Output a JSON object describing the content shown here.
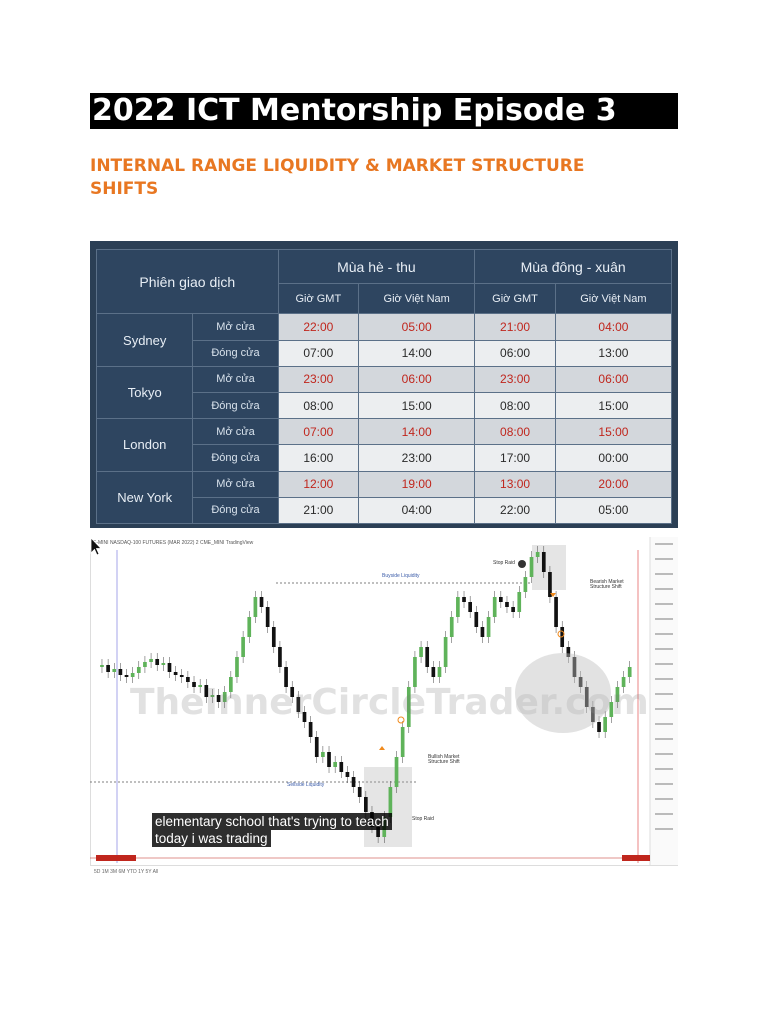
{
  "document": {
    "title": "2022 ICT Mentorship Episode 3",
    "subtitle": "INTERNAL RANGE LIQUIDITY & MARKET STRUCTURE SHIFTS"
  },
  "session_table": {
    "header_session": "Phiên giao dịch",
    "season_summer": "Mùa hè - thu",
    "season_winter": "Mùa đông - xuân",
    "col_gmt": "Giờ GMT",
    "col_vn": "Giờ Việt Nam",
    "label_open": "Mở cửa",
    "label_close": "Đóng cửa",
    "rows": [
      {
        "city": "Sydney",
        "open": [
          "22:00",
          "05:00",
          "21:00",
          "04:00"
        ],
        "close": [
          "07:00",
          "14:00",
          "06:00",
          "13:00"
        ]
      },
      {
        "city": "Tokyo",
        "open": [
          "23:00",
          "06:00",
          "23:00",
          "06:00"
        ],
        "close": [
          "08:00",
          "15:00",
          "08:00",
          "15:00"
        ]
      },
      {
        "city": "London",
        "open": [
          "07:00",
          "14:00",
          "08:00",
          "15:00"
        ],
        "close": [
          "16:00",
          "23:00",
          "17:00",
          "00:00"
        ]
      },
      {
        "city": "New York",
        "open": [
          "12:00",
          "19:00",
          "13:00",
          "20:00"
        ],
        "close": [
          "21:00",
          "04:00",
          "22:00",
          "05:00"
        ]
      }
    ]
  },
  "video": {
    "header": "E-MINI NASDAQ-100 FUTURES (MAR 2022)  2  CME_MINI  TradingView",
    "watermark": "TheInnerCircleTrader.com",
    "caption_line1": "elementary school that's trying to teach",
    "caption_line2": "today i was trading",
    "buyside_label": "Buyside Liquidity",
    "sellside_label": "Sellside Liquidity",
    "bullish_mss": "Bullish Market Structure Shift",
    "bearish_mss": "Bearish Market Structure Shift",
    "stop_raid": "Stop Raid",
    "timeframes": "5D  1M  3M  6M  YTD  1Y  5Y  All",
    "colors": {
      "up": "#5fb35a",
      "down": "#111111",
      "level_line": "#555555"
    }
  }
}
